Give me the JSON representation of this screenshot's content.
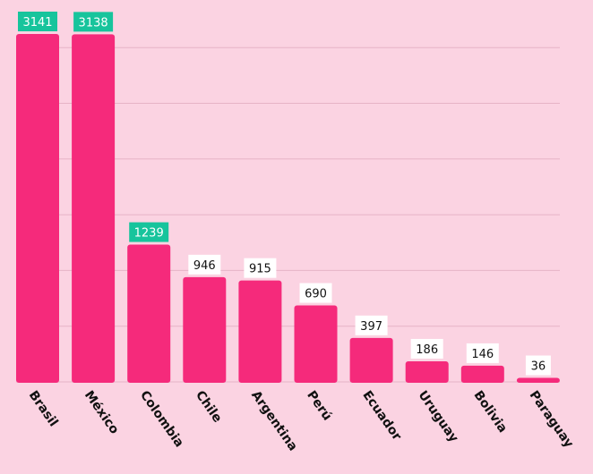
{
  "chart_data": {
    "type": "bar",
    "categories": [
      "Brasil",
      "México",
      "Colombia",
      "Chile",
      "Argentina",
      "Perú",
      "Ecuador",
      "Uruguay",
      "Bolivia",
      "Paraguay"
    ],
    "values": [
      3141,
      3138,
      1239,
      946,
      915,
      690,
      397,
      186,
      146,
      36
    ],
    "highlighted": [
      true,
      true,
      true,
      false,
      false,
      false,
      false,
      false,
      false,
      false
    ],
    "title": "",
    "xlabel": "",
    "ylabel": "",
    "ylim": [
      0,
      3141
    ],
    "grid": true,
    "legend": "none",
    "colors": {
      "background": "#fbd3e2",
      "bar": "#f52a7b",
      "highlight_label_bg": "#17c49c",
      "highlight_label_text": "#ffffff",
      "label_bg": "#ffffff",
      "label_text": "#111111",
      "grid": "#e6b3c6"
    }
  }
}
